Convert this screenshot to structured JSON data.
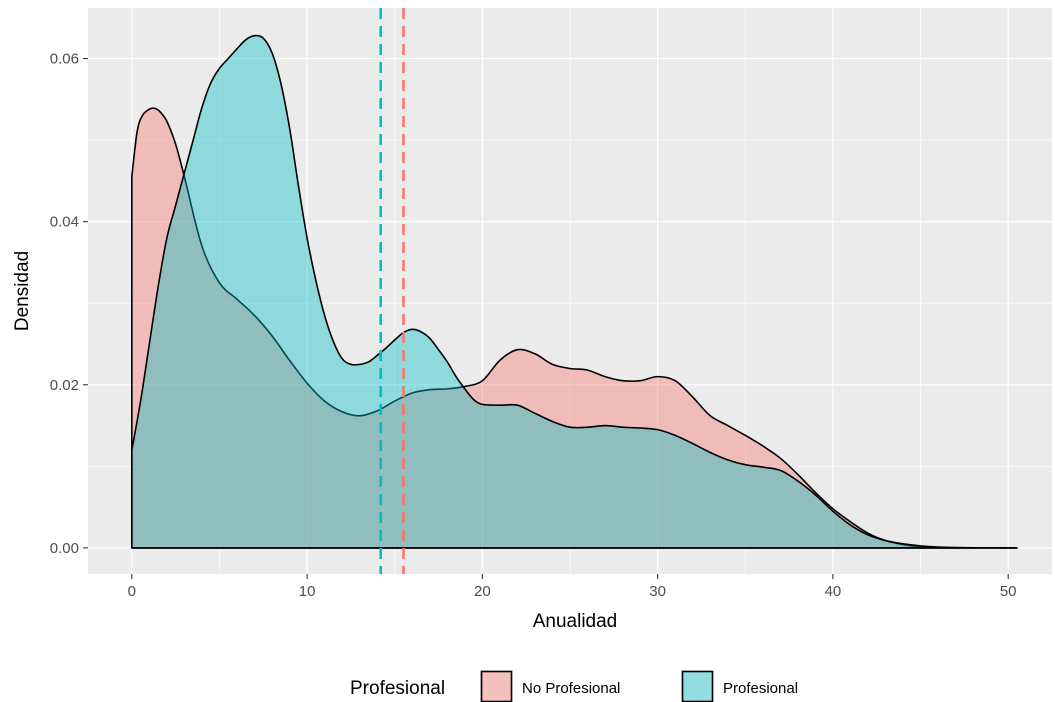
{
  "chart_data": {
    "type": "area",
    "title": "",
    "xlabel": "Anualidad",
    "ylabel": "Densidad",
    "xlim": [
      -2.5,
      52.5
    ],
    "ylim": [
      -0.0032,
      0.0662
    ],
    "x_ticks": [
      0,
      10,
      20,
      30,
      40,
      50
    ],
    "x_tick_labels": [
      "0",
      "10",
      "20",
      "30",
      "40",
      "50"
    ],
    "y_ticks": [
      0.0,
      0.02,
      0.04,
      0.06
    ],
    "y_tick_labels": [
      "0.00",
      "0.02",
      "0.04",
      "0.06"
    ],
    "grid": true,
    "legend": {
      "title": "Profesional",
      "position": "bottom"
    },
    "colors": {
      "No Profesional": "#F8766D",
      "Profesional": "#00BFC4",
      "panel_background": "#EBEBEB",
      "grid": "#FFFFFF"
    },
    "series": [
      {
        "name": "No Profesional",
        "mean": 15.5,
        "x": [
          0,
          0.3,
          0.6,
          1,
          1.3,
          1.6,
          2,
          2.5,
          3,
          4,
          5,
          6,
          7,
          8,
          9,
          10,
          11,
          12,
          13,
          14,
          15,
          16,
          17,
          18,
          19,
          20,
          21,
          22,
          23,
          24,
          25,
          26,
          27,
          28,
          29,
          30,
          31,
          32,
          33,
          34,
          35,
          36,
          37,
          38,
          39,
          40,
          41,
          42,
          43,
          44,
          45,
          46,
          47,
          48,
          49,
          50,
          50.5
        ],
        "y": [
          0.0455,
          0.051,
          0.053,
          0.0538,
          0.0539,
          0.0535,
          0.0523,
          0.0495,
          0.0455,
          0.037,
          0.0325,
          0.0305,
          0.0285,
          0.026,
          0.023,
          0.0202,
          0.018,
          0.0167,
          0.0162,
          0.0168,
          0.018,
          0.019,
          0.0194,
          0.0195,
          0.0198,
          0.0205,
          0.023,
          0.0243,
          0.0238,
          0.0225,
          0.022,
          0.0218,
          0.021,
          0.0205,
          0.0205,
          0.021,
          0.0205,
          0.0185,
          0.0162,
          0.015,
          0.0138,
          0.0125,
          0.011,
          0.009,
          0.0068,
          0.0048,
          0.0032,
          0.0018,
          0.0009,
          0.0004,
          0.00015,
          5e-05,
          2e-05,
          1e-05,
          0,
          0,
          0
        ]
      },
      {
        "name": "Profesional",
        "mean": 14.2,
        "x": [
          0,
          0.5,
          1,
          1.5,
          2,
          2.5,
          3,
          3.5,
          4,
          4.5,
          5,
          5.5,
          6,
          6.5,
          7,
          7.5,
          8,
          8.5,
          9,
          9.5,
          10,
          10.5,
          11,
          11.5,
          12,
          12.5,
          13,
          13.5,
          14,
          14.5,
          15,
          15.5,
          16,
          16.5,
          17,
          17.5,
          18,
          18.5,
          19,
          19.5,
          20,
          21,
          22,
          23,
          24,
          25,
          26,
          27,
          28,
          29,
          30,
          31,
          32,
          33,
          34,
          35,
          36,
          37,
          38,
          39,
          40,
          41,
          42,
          43,
          44,
          45,
          46,
          47,
          48,
          49,
          50,
          50.5
        ],
        "y": [
          0.012,
          0.018,
          0.025,
          0.032,
          0.038,
          0.042,
          0.046,
          0.05,
          0.054,
          0.057,
          0.0588,
          0.06,
          0.0612,
          0.0623,
          0.0628,
          0.0625,
          0.0607,
          0.057,
          0.0515,
          0.0445,
          0.038,
          0.0328,
          0.0285,
          0.0253,
          0.0232,
          0.0225,
          0.0225,
          0.0228,
          0.0236,
          0.0245,
          0.0255,
          0.0264,
          0.0268,
          0.0265,
          0.0257,
          0.0243,
          0.0228,
          0.021,
          0.0195,
          0.0182,
          0.0176,
          0.0175,
          0.0175,
          0.0165,
          0.0155,
          0.0148,
          0.0148,
          0.015,
          0.0148,
          0.0147,
          0.0145,
          0.0138,
          0.0128,
          0.0117,
          0.0108,
          0.0102,
          0.0099,
          0.0095,
          0.0082,
          0.0065,
          0.0045,
          0.0028,
          0.0016,
          0.0009,
          0.0005,
          0.00025,
          0.0001,
          4e-05,
          2e-05,
          1e-05,
          0,
          0
        ]
      }
    ]
  }
}
